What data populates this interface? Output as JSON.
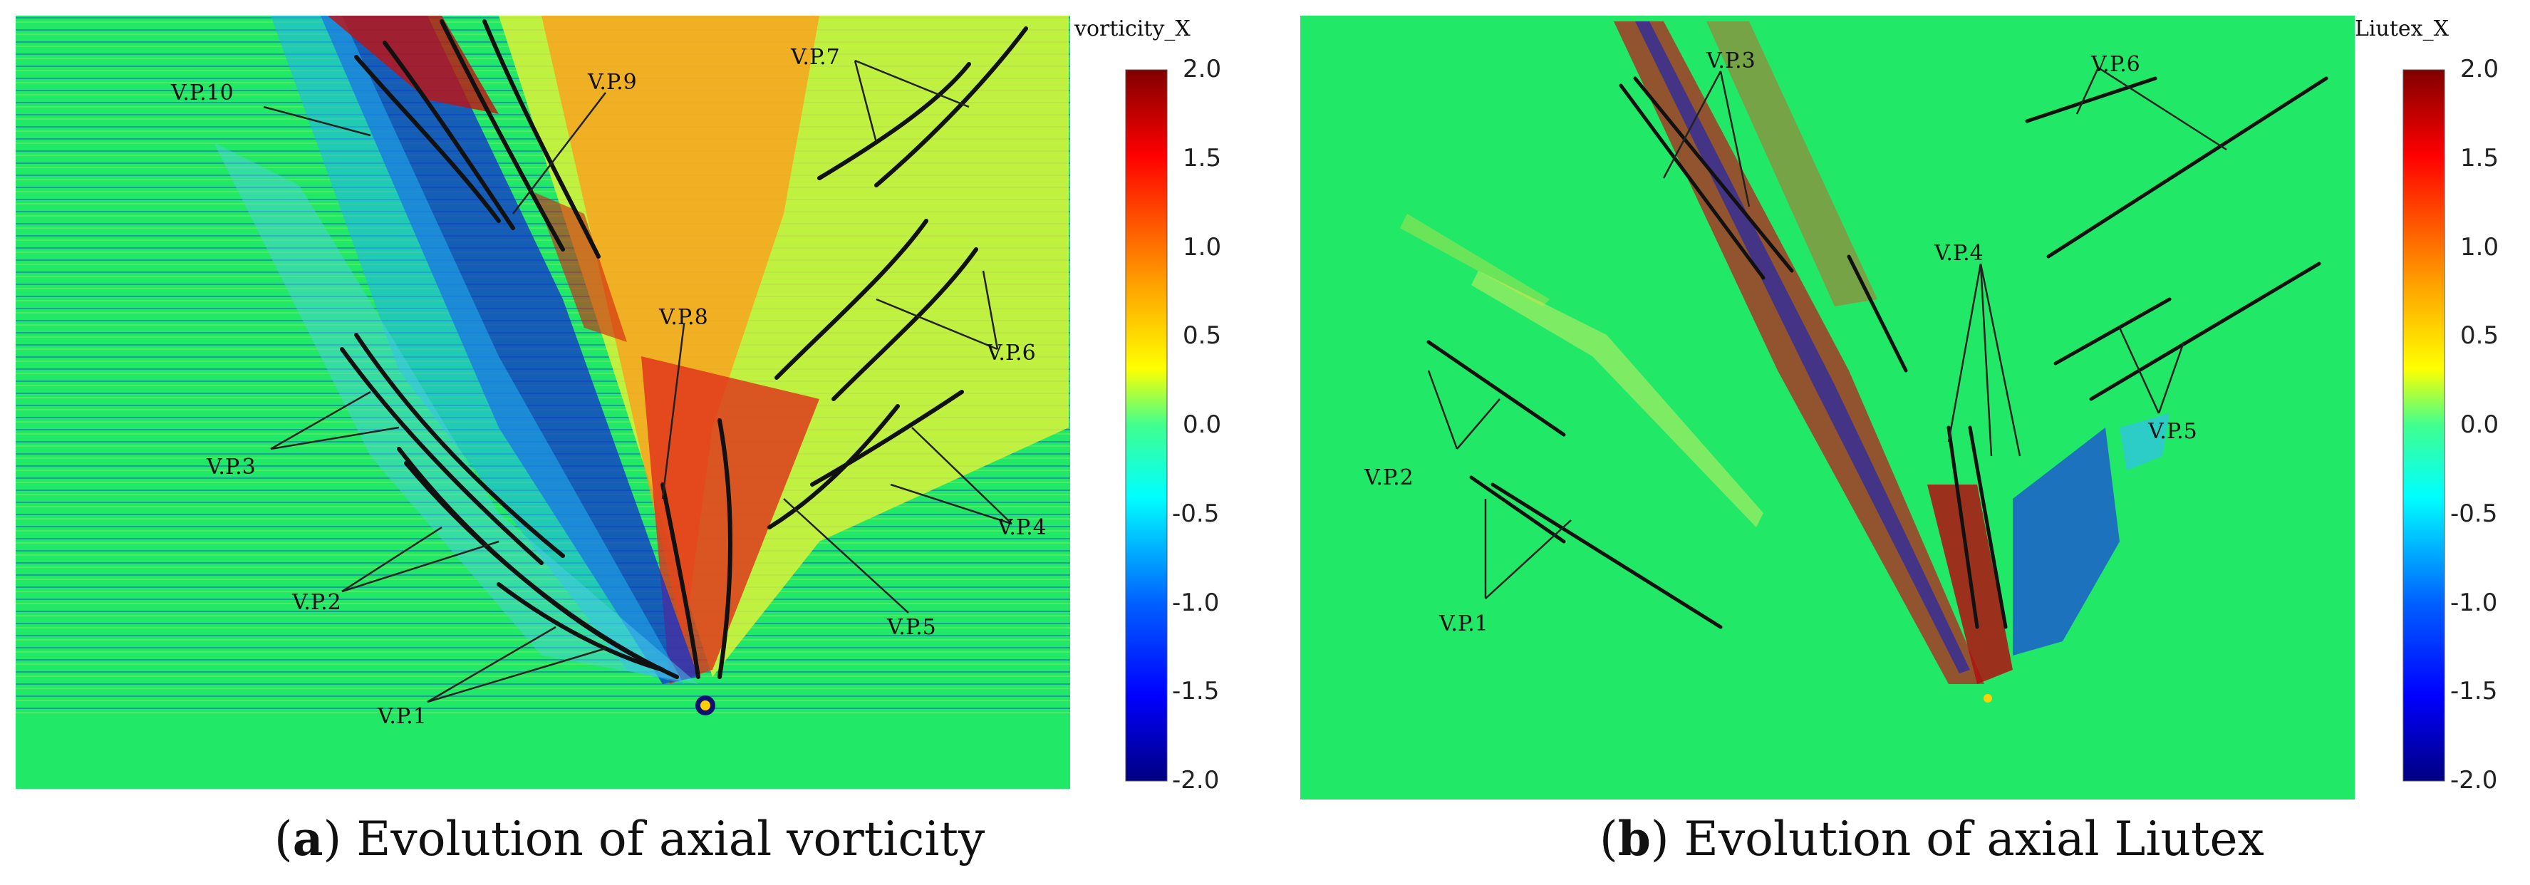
{
  "panels": [
    {
      "id": "a",
      "colorbar_title": "vorticity_X",
      "ticks": [
        "2.0",
        "1.5",
        "1.0",
        "0.5",
        "0.0",
        "-0.5",
        "-1.0",
        "-1.5",
        "-2.0"
      ],
      "labels": [
        "V.P.10",
        "V.P.9",
        "V.P.8",
        "V.P.7",
        "V.P.6",
        "V.P.5",
        "V.P.4",
        "V.P.3",
        "V.P.2",
        "V.P.1"
      ],
      "caption_letter": "a",
      "caption_text": " Evolution of axial vorticity"
    },
    {
      "id": "b",
      "colorbar_title": "Liutex_X",
      "ticks": [
        "2.0",
        "1.5",
        "1.0",
        "0.5",
        "0.0",
        "-0.5",
        "-1.0",
        "-1.5",
        "-2.0"
      ],
      "labels": [
        "V.P.3",
        "V.P.6",
        "V.P.4",
        "V.P.5",
        "V.P.2",
        "V.P.1"
      ],
      "caption_letter": "b",
      "caption_text": " Evolution of axial Liutex"
    }
  ],
  "colormap": [
    "#000080",
    "#0000ff",
    "#00ffff",
    "#7fff7f",
    "#ffff00",
    "#ff0000",
    "#800000"
  ],
  "field_color": "#22e868"
}
